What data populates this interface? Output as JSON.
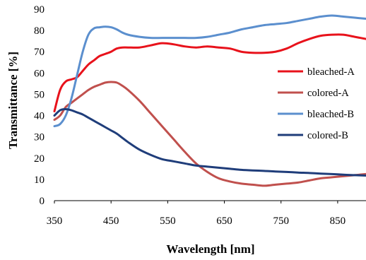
{
  "chart_data": {
    "type": "line",
    "title": "",
    "xlabel": "Wavelength [nm]",
    "ylabel": "Transmittance [%]",
    "xlim": [
      350,
      900
    ],
    "ylim": [
      0,
      90
    ],
    "xticks": [
      350,
      450,
      550,
      650,
      750,
      850
    ],
    "yticks": [
      0,
      10,
      20,
      30,
      40,
      50,
      60,
      70,
      80,
      90
    ],
    "grid": false,
    "legend_position": "right",
    "series": [
      {
        "name": "bleached-A",
        "color": "#e8121b",
        "x": [
          350,
          360,
          370,
          380,
          390,
          400,
          410,
          420,
          430,
          440,
          450,
          460,
          470,
          480,
          500,
          520,
          540,
          560,
          580,
          600,
          620,
          640,
          660,
          680,
          700,
          720,
          740,
          760,
          780,
          800,
          820,
          840,
          860,
          880,
          900
        ],
        "y": [
          42,
          52,
          56,
          57,
          58,
          61,
          64,
          66,
          68,
          69,
          70,
          71.5,
          72,
          72,
          72,
          73,
          74,
          73.5,
          72.5,
          72,
          72.5,
          72,
          71.5,
          70,
          69.5,
          69.5,
          70,
          71.5,
          74,
          76,
          77.5,
          78,
          78,
          77,
          76
        ]
      },
      {
        "name": "colored-A",
        "color": "#c0504d",
        "x": [
          350,
          360,
          370,
          380,
          390,
          400,
          410,
          420,
          430,
          440,
          450,
          460,
          470,
          480,
          500,
          520,
          540,
          560,
          580,
          600,
          620,
          640,
          660,
          680,
          700,
          720,
          740,
          760,
          780,
          800,
          820,
          840,
          860,
          880,
          900
        ],
        "y": [
          38,
          40,
          44,
          46,
          48,
          50,
          52,
          53.5,
          54.5,
          55.5,
          55.8,
          55.5,
          54,
          52,
          47,
          41,
          35,
          29,
          23,
          17.5,
          13.5,
          10.5,
          9,
          8,
          7.5,
          7,
          7.5,
          8,
          8.5,
          9.5,
          10.5,
          11,
          11.5,
          12,
          12.5
        ]
      },
      {
        "name": "bleached-B",
        "color": "#5b8fce",
        "x": [
          350,
          360,
          370,
          380,
          390,
          400,
          410,
          420,
          430,
          440,
          450,
          460,
          470,
          480,
          500,
          520,
          540,
          560,
          580,
          600,
          620,
          640,
          660,
          680,
          700,
          720,
          740,
          760,
          780,
          800,
          820,
          840,
          860,
          880,
          900
        ],
        "y": [
          35,
          36,
          40,
          48,
          59,
          70,
          78,
          81,
          81.5,
          81.8,
          81.5,
          80.5,
          79,
          78,
          77,
          76.5,
          76.5,
          76.5,
          76.5,
          76.5,
          77,
          78,
          79,
          80.5,
          81.5,
          82.5,
          83,
          83.5,
          84.5,
          85.5,
          86.5,
          87,
          86.5,
          86,
          85.5
        ]
      },
      {
        "name": "colored-B",
        "color": "#1f3d7a",
        "x": [
          350,
          360,
          370,
          380,
          390,
          400,
          410,
          420,
          430,
          440,
          450,
          460,
          470,
          480,
          500,
          520,
          540,
          560,
          580,
          600,
          620,
          640,
          660,
          680,
          700,
          720,
          740,
          760,
          780,
          800,
          820,
          840,
          860,
          880,
          900
        ],
        "y": [
          40,
          42.5,
          43,
          42.5,
          41.5,
          40.5,
          39,
          37.5,
          36,
          34.5,
          33,
          31.5,
          29.5,
          27.5,
          24,
          21.5,
          19.5,
          18.5,
          17.5,
          16.5,
          16,
          15.5,
          15,
          14.5,
          14.2,
          14,
          13.7,
          13.5,
          13.2,
          13,
          12.7,
          12.5,
          12.2,
          12,
          11.8
        ]
      }
    ]
  }
}
